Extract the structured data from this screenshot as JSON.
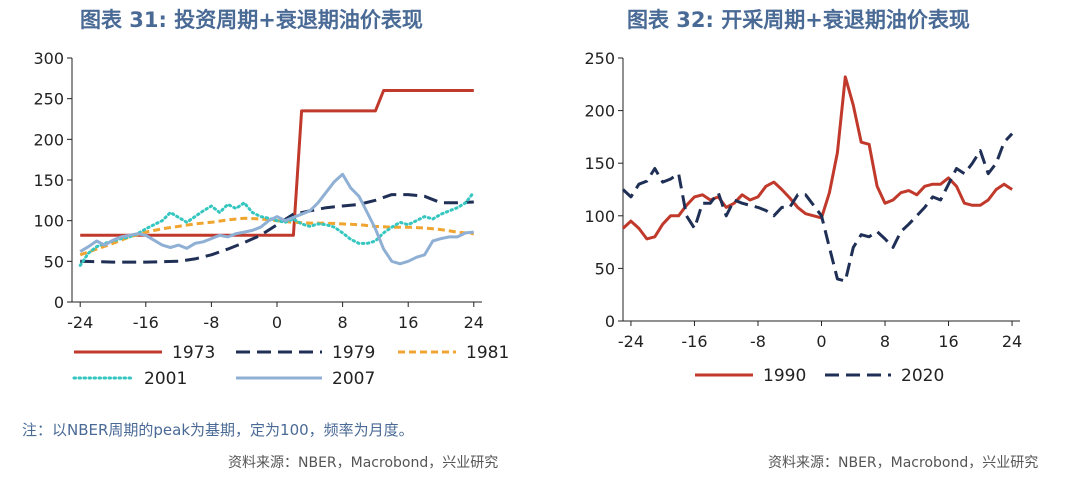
{
  "titles": {
    "left": "图表 31: 投资周期+衰退期油价表现",
    "right": "图表 32: 开采周期+衰退期油价表现"
  },
  "note": "注：以NBER周期的peak为基期，定为100，频率为月度。",
  "sources": {
    "left": "资料来源：NBER，Macrobond，兴业研究",
    "right": "资料来源：NBER，Macrobond，兴业研究"
  },
  "chart_data": [
    {
      "type": "line",
      "title": "图表 31: 投资周期+衰退期油价表现",
      "xlim": [
        -25,
        25
      ],
      "xticks": [
        -24,
        -16,
        -8,
        0,
        8,
        16,
        24
      ],
      "ylim": [
        0,
        300
      ],
      "yticks": [
        0,
        50,
        100,
        150,
        200,
        250,
        300
      ],
      "grid": false,
      "legend_position": "bottom",
      "series": [
        {
          "name": "1973",
          "color": "#c0392b",
          "dash": "solid",
          "x": [
            -24,
            2,
            3,
            12,
            13,
            24
          ],
          "y": [
            82,
            82,
            235,
            235,
            260,
            260
          ]
        },
        {
          "name": "1979",
          "color": "#1f2f55",
          "dash": "long",
          "x": [
            -24,
            -20,
            -16,
            -12,
            -10,
            -8,
            -6,
            -4,
            -2,
            0,
            2,
            4,
            6,
            8,
            10,
            12,
            14,
            16,
            18,
            20,
            22,
            24
          ],
          "y": [
            50,
            49,
            49,
            50,
            53,
            58,
            65,
            73,
            82,
            95,
            108,
            112,
            116,
            118,
            120,
            125,
            132,
            132,
            130,
            122,
            122,
            123
          ]
        },
        {
          "name": "1981",
          "color": "#f0a530",
          "dash": "dash",
          "x": [
            -24,
            -22,
            -20,
            -18,
            -16,
            -14,
            -12,
            -10,
            -8,
            -6,
            -4,
            -2,
            0,
            2,
            4,
            6,
            8,
            10,
            12,
            14,
            16,
            18,
            20,
            22,
            24
          ],
          "y": [
            58,
            65,
            72,
            80,
            86,
            90,
            93,
            96,
            98,
            101,
            103,
            102,
            100,
            98,
            97,
            97,
            96,
            95,
            93,
            92,
            92,
            91,
            89,
            86,
            84
          ]
        },
        {
          "name": "2001",
          "color": "#35c6c0",
          "dash": "dot",
          "x": [
            -24,
            -23,
            -22,
            -21,
            -20,
            -19,
            -18,
            -17,
            -16,
            -15,
            -14,
            -13,
            -12,
            -11,
            -10,
            -9,
            -8,
            -7,
            -6,
            -5,
            -4,
            -3,
            -2,
            -1,
            0,
            1,
            2,
            3,
            4,
            5,
            6,
            7,
            8,
            9,
            10,
            11,
            12,
            13,
            14,
            15,
            16,
            17,
            18,
            19,
            20,
            21,
            22,
            23,
            24
          ],
          "y": [
            45,
            60,
            68,
            72,
            75,
            78,
            80,
            84,
            90,
            95,
            100,
            110,
            104,
            98,
            105,
            112,
            118,
            110,
            120,
            115,
            122,
            110,
            105,
            103,
            100,
            98,
            102,
            96,
            93,
            96,
            95,
            92,
            85,
            77,
            72,
            72,
            75,
            85,
            92,
            98,
            95,
            100,
            105,
            102,
            108,
            112,
            116,
            122,
            135
          ]
        },
        {
          "name": "2007",
          "color": "#8fb0d4",
          "dash": "solid",
          "x": [
            -24,
            -23,
            -22,
            -21,
            -20,
            -19,
            -18,
            -17,
            -16,
            -15,
            -14,
            -13,
            -12,
            -11,
            -10,
            -9,
            -8,
            -7,
            -6,
            -5,
            -4,
            -3,
            -2,
            -1,
            0,
            1,
            2,
            3,
            4,
            5,
            6,
            7,
            8,
            9,
            10,
            11,
            12,
            13,
            14,
            15,
            16,
            17,
            18,
            19,
            20,
            21,
            22,
            23,
            24
          ],
          "y": [
            62,
            68,
            75,
            70,
            76,
            80,
            82,
            84,
            82,
            76,
            70,
            67,
            70,
            66,
            72,
            74,
            78,
            82,
            80,
            84,
            86,
            88,
            92,
            100,
            105,
            100,
            104,
            108,
            112,
            122,
            135,
            148,
            157,
            140,
            130,
            110,
            90,
            65,
            50,
            47,
            50,
            55,
            58,
            75,
            78,
            80,
            80,
            85,
            86
          ]
        }
      ]
    },
    {
      "type": "line",
      "title": "图表 32: 开采周期+衰退期油价表现",
      "xlim": [
        -25,
        25
      ],
      "xticks": [
        -24,
        -16,
        -8,
        0,
        8,
        16,
        24
      ],
      "ylim": [
        0,
        250
      ],
      "yticks": [
        0,
        50,
        100,
        150,
        200,
        250
      ],
      "grid": false,
      "legend_position": "bottom",
      "series": [
        {
          "name": "1990",
          "color": "#c0392b",
          "dash": "solid",
          "x": [
            -25,
            -24,
            -23,
            -22,
            -21,
            -20,
            -19,
            -18,
            -17,
            -16,
            -15,
            -14,
            -13,
            -12,
            -11,
            -10,
            -9,
            -8,
            -7,
            -6,
            -5,
            -4,
            -3,
            -2,
            -1,
            0,
            1,
            2,
            3,
            4,
            5,
            6,
            7,
            8,
            9,
            10,
            11,
            12,
            13,
            14,
            15,
            16,
            17,
            18,
            19,
            20,
            21,
            22,
            23,
            24
          ],
          "y": [
            88,
            95,
            88,
            78,
            80,
            92,
            100,
            100,
            110,
            118,
            120,
            115,
            118,
            108,
            112,
            120,
            115,
            118,
            128,
            132,
            125,
            117,
            108,
            102,
            100,
            98,
            122,
            160,
            232,
            205,
            170,
            168,
            128,
            112,
            115,
            122,
            124,
            120,
            128,
            130,
            130,
            136,
            128,
            112,
            110,
            110,
            115,
            125,
            130,
            125
          ]
        },
        {
          "name": "2020",
          "color": "#1f2f55",
          "dash": "long",
          "x": [
            -25,
            -24,
            -23,
            -22,
            -21,
            -20,
            -19,
            -18,
            -17,
            -16,
            -15,
            -14,
            -13,
            -12,
            -11,
            -10,
            -9,
            -8,
            -7,
            -6,
            -5,
            -4,
            -3,
            -2,
            -1,
            0,
            1,
            2,
            3,
            4,
            5,
            6,
            7,
            8,
            9,
            10,
            11,
            12,
            13,
            14,
            15,
            16,
            17,
            18,
            19,
            20,
            21,
            22,
            23,
            24
          ],
          "y": [
            125,
            118,
            130,
            133,
            145,
            132,
            135,
            140,
            100,
            88,
            112,
            112,
            122,
            100,
            115,
            112,
            110,
            108,
            105,
            100,
            108,
            108,
            120,
            120,
            110,
            100,
            70,
            40,
            38,
            70,
            82,
            80,
            85,
            78,
            70,
            85,
            92,
            100,
            108,
            118,
            115,
            130,
            145,
            140,
            150,
            162,
            140,
            150,
            170,
            178
          ]
        }
      ]
    }
  ]
}
